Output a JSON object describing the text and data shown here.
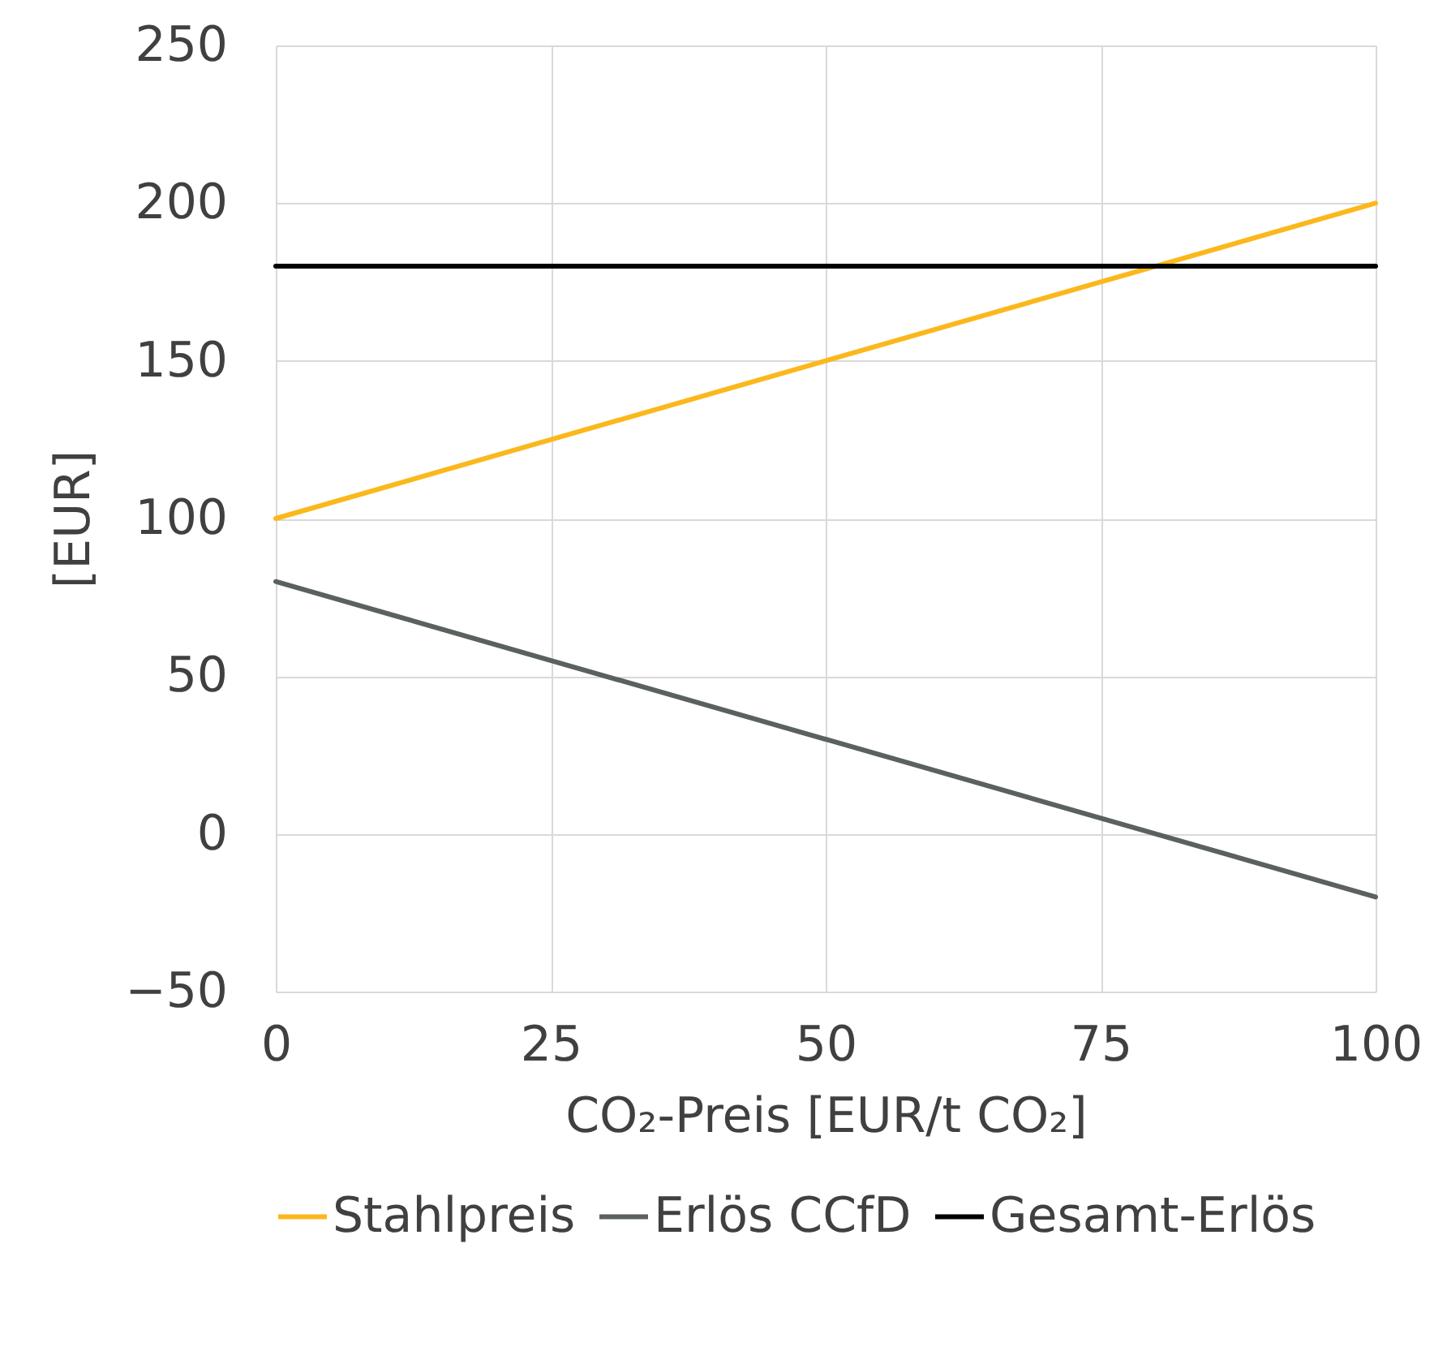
{
  "chart_data": {
    "type": "line",
    "xlabel": "CO₂-Preis [EUR/t CO₂]",
    "ylabel": "[EUR]",
    "x": [
      0,
      100
    ],
    "series": [
      {
        "name": "Stahlpreis",
        "color": "#fbb81c",
        "values": [
          100,
          200
        ]
      },
      {
        "name": "Erlös CCfD",
        "color": "#5a6160",
        "values": [
          80,
          -20
        ]
      },
      {
        "name": "Gesamt-Erlös",
        "color": "#000000",
        "values": [
          180,
          180
        ]
      }
    ],
    "xlim": [
      0,
      100
    ],
    "xticks": [
      0,
      25,
      50,
      75,
      100
    ],
    "ylim": [
      -50,
      250
    ],
    "yticks": [
      -50,
      0,
      50,
      100,
      150,
      200,
      250
    ],
    "grid": true,
    "legend": "bottom",
    "marker": "none",
    "line_style": "solid"
  }
}
